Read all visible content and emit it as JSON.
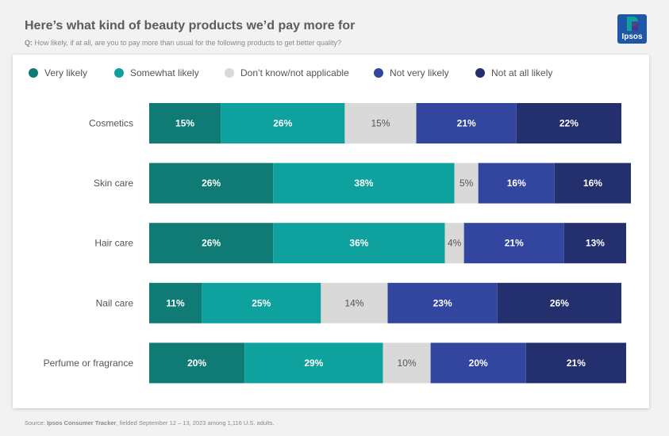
{
  "header": {
    "title": "Here’s what kind of beauty products we’d pay more for",
    "question_prefix": "Q:",
    "question": "How likely, if at all, are you to pay more than usual for the following products to get better quality?"
  },
  "logo": {
    "text": "Ipsos",
    "color": "#1f56a8"
  },
  "legend": [
    {
      "label": "Very likely",
      "color": "#107b74"
    },
    {
      "label": "Somewhat likely",
      "color": "#0ea19d"
    },
    {
      "label": "Don’t know/not applicable",
      "color": "#d9d9d9"
    },
    {
      "label": "Not very likely",
      "color": "#3246a0"
    },
    {
      "label": "Not at all likely",
      "color": "#242f6e"
    }
  ],
  "chart_data": {
    "type": "bar",
    "orientation": "horizontal",
    "stacked": true,
    "title": "Here’s what kind of beauty products we’d pay more for",
    "categories": [
      "Cosmetics",
      "Skin care",
      "Hair care",
      "Nail care",
      "Perfume or fragrance"
    ],
    "series": [
      {
        "name": "Very likely",
        "color": "#107b74",
        "label_color": "#ffffff",
        "values": [
          15,
          26,
          26,
          11,
          20
        ]
      },
      {
        "name": "Somewhat likely",
        "color": "#0ea19d",
        "label_color": "#ffffff",
        "values": [
          26,
          38,
          36,
          25,
          29
        ]
      },
      {
        "name": "Don’t know/not applicable",
        "color": "#d9d9d9",
        "label_color": "#555555",
        "values": [
          15,
          5,
          4,
          14,
          10
        ]
      },
      {
        "name": "Not very likely",
        "color": "#3246a0",
        "label_color": "#ffffff",
        "values": [
          21,
          16,
          21,
          23,
          20
        ]
      },
      {
        "name": "Not at all likely",
        "color": "#242f6e",
        "label_color": "#ffffff",
        "values": [
          22,
          16,
          13,
          26,
          21
        ]
      }
    ],
    "value_suffix": "%",
    "xlim": [
      0,
      100
    ],
    "grid": false,
    "legend_position": "top"
  },
  "source": {
    "prefix": "Source: ",
    "name": "Ipsos Consumer Tracker",
    "detail": ", fielded September 12 – 13, 2023 among 1,116 U.S. adults."
  }
}
